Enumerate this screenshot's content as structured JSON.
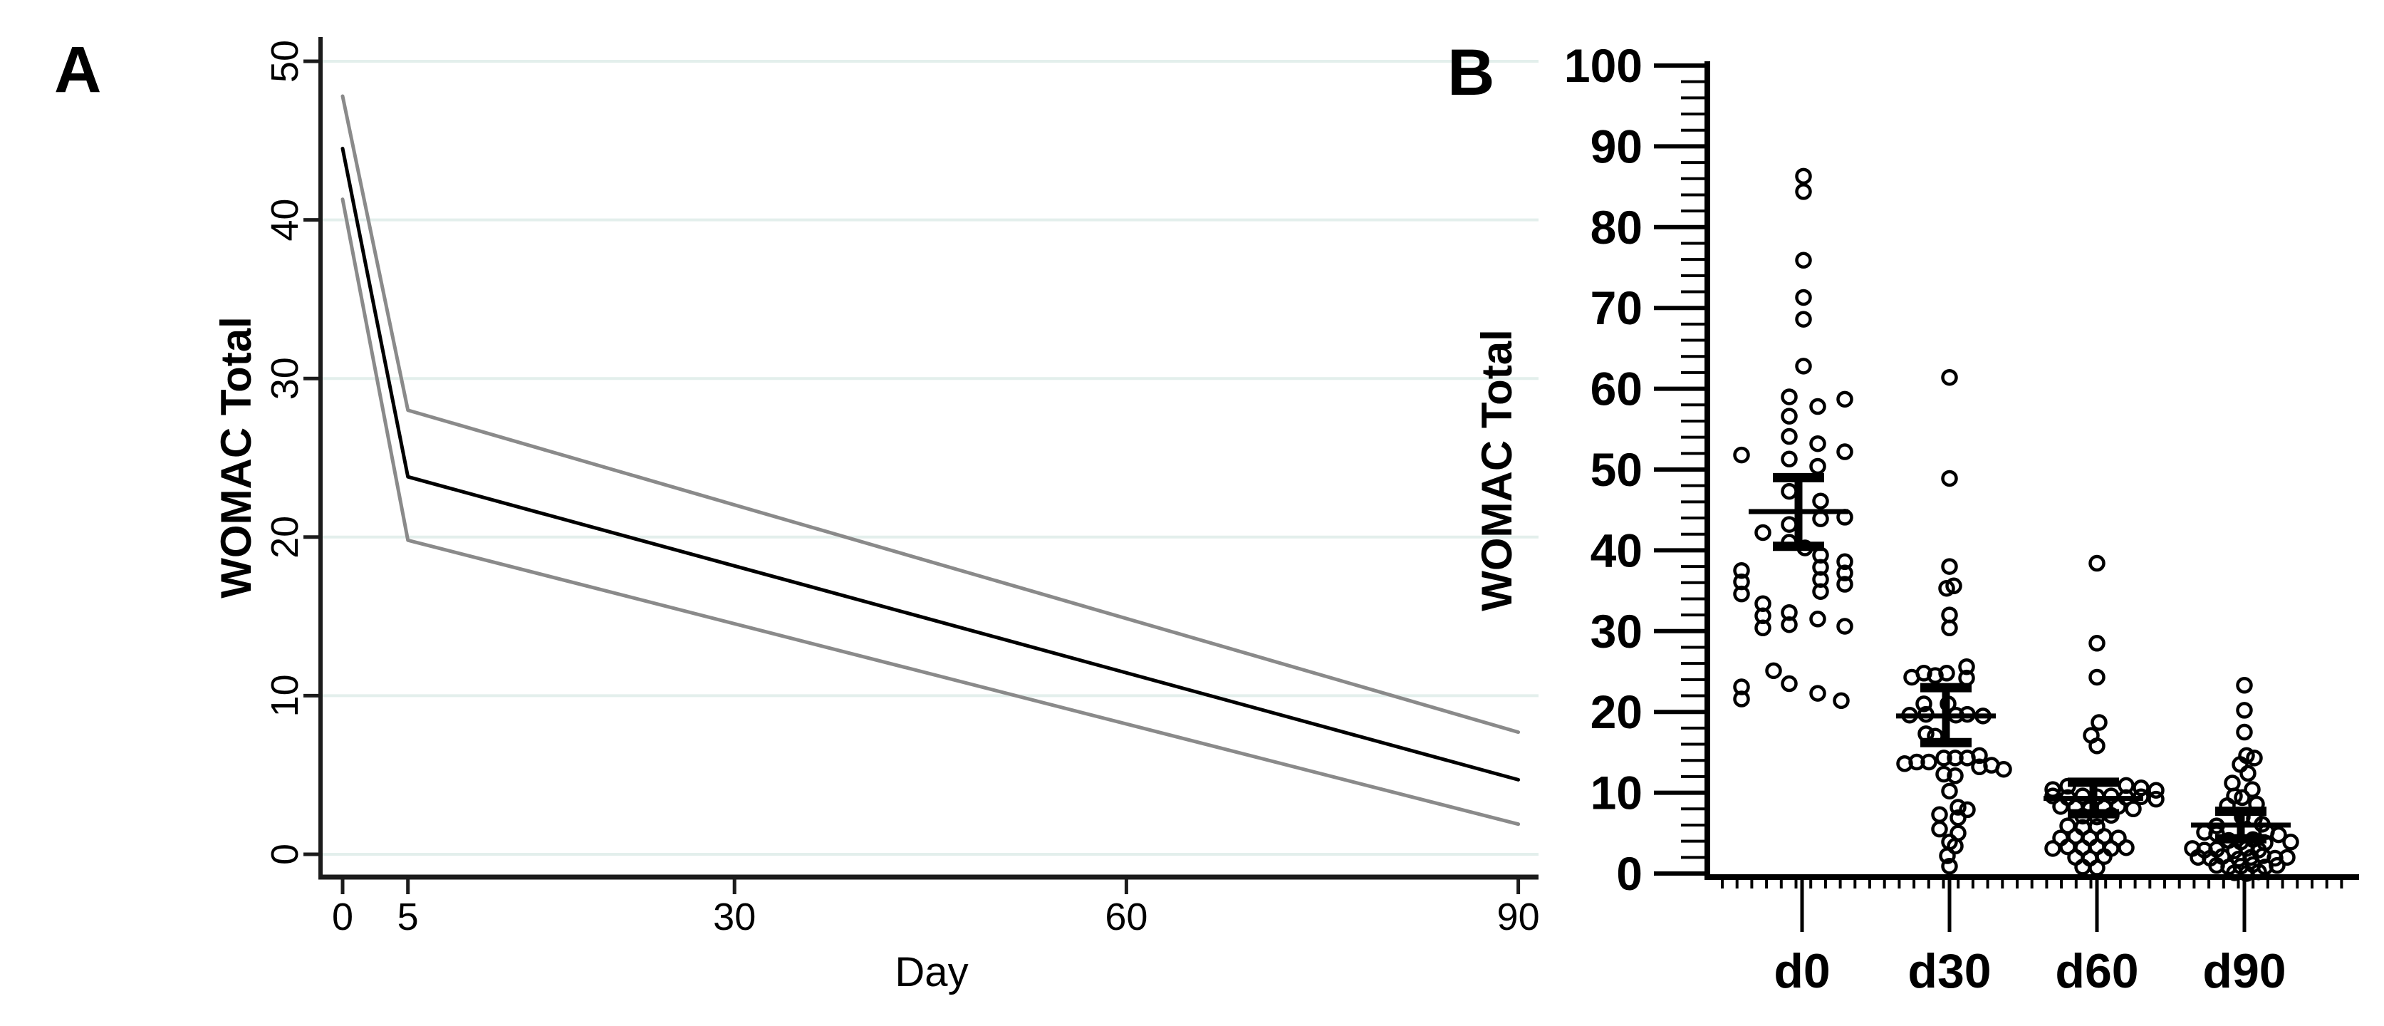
{
  "figure": {
    "panel_a_letter": "A",
    "panel_b_letter": "B",
    "background_color": "#ffffff",
    "line_color": "#000000",
    "ci_line_color": "#8a8a8a",
    "gridline_color": "#e3efec",
    "axis_color": "#1b1b1b"
  },
  "chart_data": [
    {
      "panel": "A",
      "type": "line",
      "xlabel": "Day",
      "ylabel": "WOMAC Total",
      "xlim": [
        0,
        90
      ],
      "ylim": [
        0,
        50
      ],
      "x_ticks": [
        0,
        5,
        30,
        60,
        90
      ],
      "y_ticks": [
        0,
        10,
        20,
        30,
        40,
        50
      ],
      "grid": "horizontal",
      "legend": "none",
      "series": [
        {
          "name": "mean",
          "color": "#000000",
          "width": 5,
          "points": [
            [
              0,
              44.5
            ],
            [
              5,
              23.8
            ],
            [
              90,
              4.7
            ]
          ]
        },
        {
          "name": "upper-95ci",
          "color": "#8a8a8a",
          "width": 5,
          "points": [
            [
              0,
              47.8
            ],
            [
              5,
              28.0
            ],
            [
              90,
              7.7
            ]
          ]
        },
        {
          "name": "lower-95ci",
          "color": "#8a8a8a",
          "width": 5,
          "points": [
            [
              0,
              41.3
            ],
            [
              5,
              19.8
            ],
            [
              90,
              1.9
            ]
          ]
        }
      ]
    },
    {
      "panel": "B",
      "type": "scatter",
      "ylabel": "WOMAC Total",
      "ylim": [
        0,
        100
      ],
      "y_tick_step": 10,
      "y_minor_step": 2,
      "categories": [
        "d0",
        "d30",
        "d60",
        "d90"
      ],
      "marker": "open-circle",
      "marker_color": "#000000",
      "error_bar": "mean-with-95ci",
      "groups": [
        {
          "label": "d0",
          "mean": 44.8,
          "ci_low": 40.5,
          "ci_high": 49.0,
          "points": [
            [
              2,
              86.3
            ],
            [
              2,
              84.4
            ],
            [
              2,
              75.9
            ],
            [
              2,
              71.3
            ],
            [
              2,
              68.6
            ],
            [
              2,
              62.8
            ],
            [
              -18,
              59.0
            ],
            [
              60,
              58.7
            ],
            [
              22,
              57.8
            ],
            [
              -18,
              56.6
            ],
            [
              -85,
              51.8
            ],
            [
              -18,
              54.1
            ],
            [
              22,
              53.2
            ],
            [
              60,
              52.2
            ],
            [
              -18,
              51.3
            ],
            [
              22,
              50.4
            ],
            [
              -18,
              47.3
            ],
            [
              26,
              46.1
            ],
            [
              60,
              44.1
            ],
            [
              -55,
              42.2
            ],
            [
              26,
              43.9
            ],
            [
              -18,
              43.2
            ],
            [
              -18,
              41.0
            ],
            [
              4,
              40.3
            ],
            [
              26,
              39.4
            ],
            [
              60,
              38.6
            ],
            [
              26,
              37.9
            ],
            [
              60,
              37.2
            ],
            [
              -85,
              37.5
            ],
            [
              -85,
              36.1
            ],
            [
              26,
              36.4
            ],
            [
              60,
              35.8
            ],
            [
              -85,
              34.6
            ],
            [
              26,
              34.9
            ],
            [
              -55,
              33.4
            ],
            [
              -18,
              32.3
            ],
            [
              22,
              31.5
            ],
            [
              60,
              30.6
            ],
            [
              -55,
              31.9
            ],
            [
              -18,
              30.8
            ],
            [
              -55,
              30.4
            ],
            [
              -40,
              25.1
            ],
            [
              -18,
              23.5
            ],
            [
              -85,
              23.1
            ],
            [
              22,
              22.3
            ],
            [
              -85,
              21.6
            ],
            [
              55,
              21.4
            ]
          ]
        },
        {
          "label": "d30",
          "mean": 19.5,
          "ci_low": 16.2,
          "ci_high": 23.0,
          "points": [
            [
              0,
              61.4
            ],
            [
              0,
              48.9
            ],
            [
              0,
              38.0
            ],
            [
              -4,
              35.3
            ],
            [
              6,
              35.6
            ],
            [
              0,
              32.0
            ],
            [
              0,
              30.4
            ],
            [
              -53,
              24.3
            ],
            [
              -36,
              24.8
            ],
            [
              -20,
              24.5
            ],
            [
              -4,
              24.8
            ],
            [
              24,
              25.6
            ],
            [
              24,
              24.2
            ],
            [
              -36,
              21.0
            ],
            [
              -2,
              21.0
            ],
            [
              -56,
              19.6
            ],
            [
              -33,
              19.7
            ],
            [
              9,
              19.6
            ],
            [
              25,
              19.7
            ],
            [
              47,
              19.5
            ],
            [
              -33,
              17.3
            ],
            [
              -20,
              17.0
            ],
            [
              -63,
              13.6
            ],
            [
              -46,
              13.8
            ],
            [
              -29,
              13.8
            ],
            [
              -8,
              14.3
            ],
            [
              8,
              14.3
            ],
            [
              25,
              14.3
            ],
            [
              42,
              14.6
            ],
            [
              42,
              13.2
            ],
            [
              59,
              13.4
            ],
            [
              76,
              12.9
            ],
            [
              -8,
              12.3
            ],
            [
              8,
              12.1
            ],
            [
              0,
              10.2
            ],
            [
              12,
              8.2
            ],
            [
              25,
              7.9
            ],
            [
              -14,
              7.3
            ],
            [
              12,
              6.9
            ],
            [
              -14,
              5.5
            ],
            [
              12,
              5.0
            ],
            [
              0,
              3.9
            ],
            [
              8,
              3.4
            ],
            [
              -3,
              2.2
            ],
            [
              0,
              0.9
            ]
          ]
        },
        {
          "label": "d60",
          "mean": 9.3,
          "ci_low": 7.4,
          "ci_high": 11.3,
          "points": [
            [
              0,
              38.4
            ],
            [
              0,
              28.5
            ],
            [
              0,
              24.3
            ],
            [
              3,
              18.7
            ],
            [
              -8,
              17.1
            ],
            [
              0,
              15.8
            ],
            [
              -62,
              10.4
            ],
            [
              -41,
              10.8
            ],
            [
              41,
              10.9
            ],
            [
              62,
              10.6
            ],
            [
              83,
              10.3
            ],
            [
              -62,
              9.6
            ],
            [
              -41,
              9.4
            ],
            [
              -20,
              9.6
            ],
            [
              0,
              9.5
            ],
            [
              20,
              9.6
            ],
            [
              41,
              9.4
            ],
            [
              62,
              9.5
            ],
            [
              83,
              9.2
            ],
            [
              -51,
              8.3
            ],
            [
              -30,
              8.2
            ],
            [
              -10,
              8.0
            ],
            [
              10,
              8.2
            ],
            [
              30,
              8.3
            ],
            [
              51,
              8.0
            ],
            [
              -20,
              7.1
            ],
            [
              0,
              7.0
            ],
            [
              20,
              7.2
            ],
            [
              -41,
              5.9
            ],
            [
              -20,
              5.7
            ],
            [
              0,
              5.8
            ],
            [
              -51,
              4.4
            ],
            [
              -30,
              4.6
            ],
            [
              -10,
              4.4
            ],
            [
              10,
              4.6
            ],
            [
              30,
              4.4
            ],
            [
              -62,
              3.1
            ],
            [
              -41,
              3.3
            ],
            [
              -20,
              3.2
            ],
            [
              0,
              3.3
            ],
            [
              20,
              3.1
            ],
            [
              41,
              3.2
            ],
            [
              -30,
              2.0
            ],
            [
              -10,
              1.9
            ],
            [
              10,
              2.1
            ],
            [
              -20,
              0.8
            ],
            [
              0,
              0.7
            ]
          ]
        },
        {
          "label": "d90",
          "mean": 6.0,
          "ci_low": 4.3,
          "ci_high": 7.7,
          "points": [
            [
              0,
              23.3
            ],
            [
              0,
              20.2
            ],
            [
              0,
              17.5
            ],
            [
              3,
              14.6
            ],
            [
              14,
              14.3
            ],
            [
              -6,
              13.5
            ],
            [
              5,
              12.4
            ],
            [
              -17,
              11.2
            ],
            [
              11,
              10.4
            ],
            [
              -14,
              9.6
            ],
            [
              -3,
              9.4
            ],
            [
              17,
              8.6
            ],
            [
              -24,
              8.4
            ],
            [
              -3,
              7.0
            ],
            [
              14,
              6.8
            ],
            [
              25,
              6.1
            ],
            [
              -39,
              5.9
            ],
            [
              -56,
              5.1
            ],
            [
              -39,
              4.9
            ],
            [
              31,
              5.2
            ],
            [
              48,
              4.8
            ],
            [
              -22,
              4.1
            ],
            [
              -5,
              3.9
            ],
            [
              12,
              4.2
            ],
            [
              29,
              3.8
            ],
            [
              65,
              3.9
            ],
            [
              -73,
              3.1
            ],
            [
              -56,
              2.9
            ],
            [
              -39,
              3.0
            ],
            [
              -14,
              2.8
            ],
            [
              3,
              3.1
            ],
            [
              20,
              2.9
            ],
            [
              -65,
              2.0
            ],
            [
              -48,
              1.9
            ],
            [
              -31,
              2.1
            ],
            [
              -8,
              1.8
            ],
            [
              9,
              2.0
            ],
            [
              26,
              2.2
            ],
            [
              43,
              1.9
            ],
            [
              60,
              2.0
            ],
            [
              -39,
              1.0
            ],
            [
              -22,
              0.8
            ],
            [
              -5,
              0.9
            ],
            [
              12,
              1.1
            ],
            [
              29,
              0.8
            ],
            [
              46,
              1.0
            ],
            [
              -14,
              0.1
            ],
            [
              3,
              0.0
            ],
            [
              20,
              0.2
            ]
          ]
        }
      ]
    }
  ]
}
